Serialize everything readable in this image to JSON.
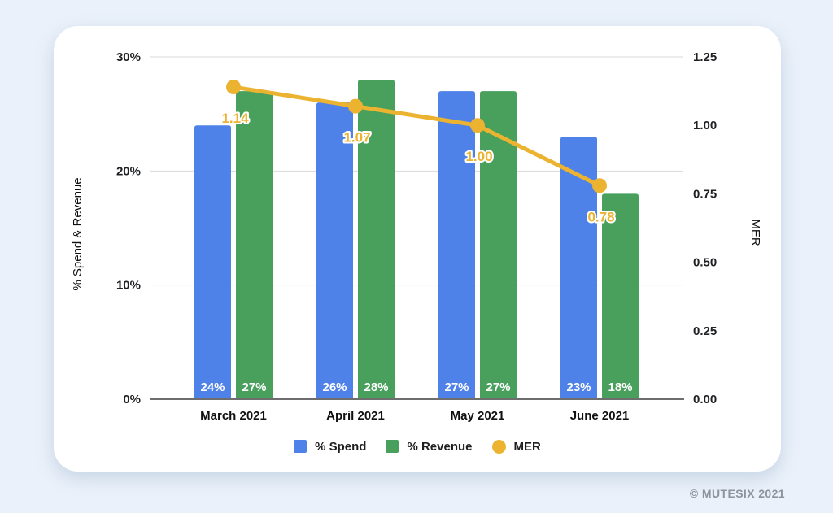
{
  "page": {
    "footer": "© MUTESIX 2021",
    "colors": {
      "background": "#eaf1fa",
      "card": "#ffffff",
      "gridline": "#d9d9d9",
      "axis_line": "#6e6e6e",
      "tick_text": "#202124",
      "bar_label_text": "#ffffff",
      "legend_text": "#1f1f1f",
      "footer_text": "#8b949c"
    }
  },
  "chart_data": {
    "type": "combo",
    "subtype": "bar+line dual axis",
    "categories": [
      "March 2021",
      "April 2021",
      "May 2021",
      "June 2021"
    ],
    "series": [
      {
        "name": "% Spend",
        "type": "bar",
        "axis": "left",
        "color": "#4f82e8",
        "values": [
          24,
          26,
          27,
          23
        ],
        "labels": [
          "24%",
          "26%",
          "27%",
          "23%"
        ]
      },
      {
        "name": "% Revenue",
        "type": "bar",
        "axis": "left",
        "color": "#48a05c",
        "values": [
          27,
          28,
          27,
          18
        ],
        "labels": [
          "27%",
          "28%",
          "27%",
          "18%"
        ]
      },
      {
        "name": "MER",
        "type": "line",
        "axis": "right",
        "color": "#ebb330",
        "values": [
          1.14,
          1.07,
          1.0,
          0.78
        ],
        "labels": [
          "1.14",
          "1.07",
          "1.00",
          "0.78"
        ]
      }
    ],
    "left_axis": {
      "title": "% Spend & Revenue",
      "min": 0,
      "max": 30,
      "ticks": [
        {
          "value": 30,
          "label": "30%"
        },
        {
          "value": 20,
          "label": "20%"
        },
        {
          "value": 10,
          "label": "10%"
        },
        {
          "value": 0,
          "label": "0%"
        }
      ]
    },
    "right_axis": {
      "title": "MER",
      "min": 0,
      "max": 1.25,
      "ticks": [
        {
          "value": 1.25,
          "label": "1.25"
        },
        {
          "value": 1.0,
          "label": "1.00"
        },
        {
          "value": 0.75,
          "label": "0.75"
        },
        {
          "value": 0.5,
          "label": "0.50"
        },
        {
          "value": 0.25,
          "label": "0.25"
        },
        {
          "value": 0,
          "label": "0.00"
        }
      ]
    },
    "grid": "horizontal",
    "legend_position": "bottom"
  }
}
